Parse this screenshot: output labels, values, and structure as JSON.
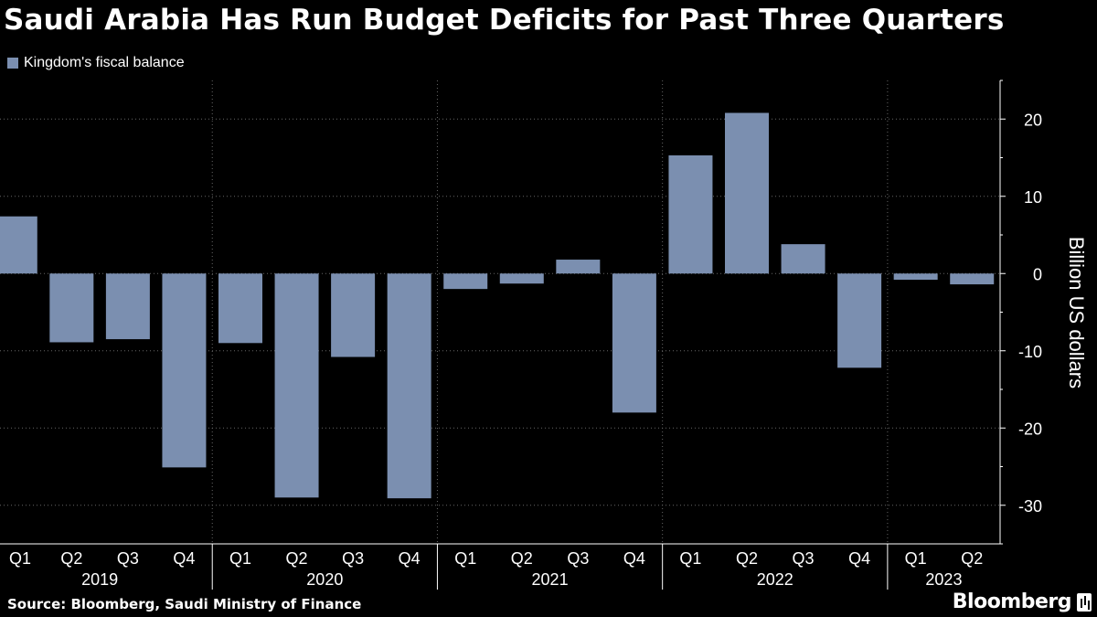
{
  "title": "Saudi Arabia Has Run Budget Deficits for Past Three Quarters",
  "legend": {
    "label": "Kingdom's fiscal balance",
    "color": "#7b8fb0"
  },
  "source": "Source: Bloomberg, Saudi Ministry of Finance",
  "brand": "Bloomberg",
  "chart_data": {
    "type": "bar",
    "title": "Saudi Arabia Has Run Budget Deficits for Past Three Quarters",
    "xlabel": "",
    "ylabel": "Billion US dollars",
    "ylim": [
      -35,
      25
    ],
    "yticks": [
      20,
      10,
      0,
      -10,
      -20,
      -30
    ],
    "grid": true,
    "legend_position": "top-left",
    "categories": [
      "Q1",
      "Q2",
      "Q3",
      "Q4",
      "Q1",
      "Q2",
      "Q3",
      "Q4",
      "Q1",
      "Q2",
      "Q3",
      "Q4",
      "Q1",
      "Q2",
      "Q3",
      "Q4",
      "Q1",
      "Q2"
    ],
    "years": [
      {
        "label": "2019",
        "quarters": 4
      },
      {
        "label": "2020",
        "quarters": 4
      },
      {
        "label": "2021",
        "quarters": 4
      },
      {
        "label": "2022",
        "quarters": 4
      },
      {
        "label": "2023",
        "quarters": 2
      }
    ],
    "series": [
      {
        "name": "Kingdom's fiscal balance",
        "color": "#7b8fb0",
        "values": [
          7.4,
          -8.9,
          -8.5,
          -25.1,
          -9.0,
          -29.0,
          -10.8,
          -29.1,
          -2.0,
          -1.3,
          1.8,
          -18.0,
          15.3,
          20.8,
          3.8,
          -12.2,
          -0.8,
          -1.4
        ]
      }
    ]
  }
}
